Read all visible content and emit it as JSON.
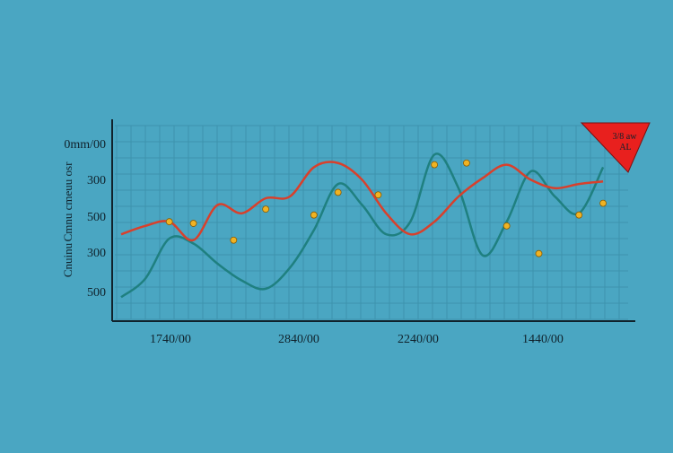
{
  "chart_data": {
    "type": "line",
    "title": "",
    "xlabel": "",
    "ylabel": "Cmnu cmeuu osr",
    "ylabel_prefix": "Cnuinu",
    "y_tick_labels": [
      "0mm/00",
      "300",
      "500",
      "300",
      "500"
    ],
    "x_tick_labels": [
      "1740/00",
      "2840/00",
      "2240/00",
      "1440/00"
    ],
    "x": [
      0,
      3,
      6,
      9,
      12,
      15,
      18,
      21,
      24,
      27,
      30,
      33,
      36,
      39,
      42,
      45,
      48,
      51,
      54,
      57,
      60
    ],
    "series": [
      {
        "color": "#1f8080",
        "values": [
          20,
          42,
          90,
          84,
          60,
          40,
          30,
          55,
          100,
          155,
          130,
          95,
          110,
          190,
          150,
          70,
          110,
          170,
          140,
          120,
          175
        ]
      },
      {
        "color": "#d8402c",
        "values": [
          95,
          105,
          110,
          88,
          130,
          120,
          138,
          140,
          175,
          180,
          160,
          120,
          95,
          110,
          140,
          162,
          178,
          160,
          150,
          155,
          158
        ]
      }
    ],
    "markers": [
      {
        "x": 6,
        "y": 110
      },
      {
        "x": 9,
        "y": 108
      },
      {
        "x": 14,
        "y": 88
      },
      {
        "x": 18,
        "y": 125
      },
      {
        "x": 24,
        "y": 118
      },
      {
        "x": 27,
        "y": 145
      },
      {
        "x": 32,
        "y": 142
      },
      {
        "x": 39,
        "y": 178
      },
      {
        "x": 43,
        "y": 180
      },
      {
        "x": 48,
        "y": 105
      },
      {
        "x": 52,
        "y": 72
      },
      {
        "x": 57,
        "y": 118
      },
      {
        "x": 60,
        "y": 132
      }
    ],
    "ylim": [
      0,
      230
    ],
    "xlim": [
      0,
      62
    ],
    "grid": true,
    "legend": {
      "color": "#e8201e",
      "line1": "3/8 aw",
      "line2": "AL"
    }
  }
}
